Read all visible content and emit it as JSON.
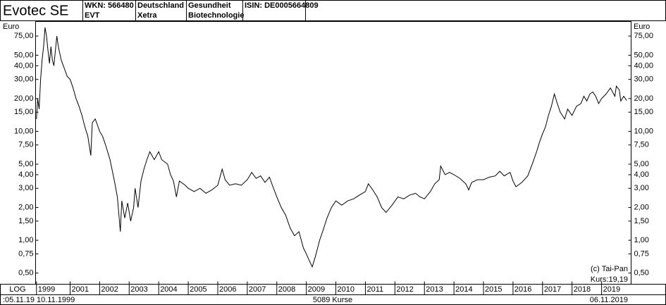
{
  "header": {
    "title": "Evotec SE",
    "cells": [
      [
        "WKN: 566480",
        "EVT"
      ],
      [
        "Deutschland",
        "Xetra"
      ],
      [
        "Gesundheit",
        "Biotechnologie"
      ],
      [
        "ISIN: DE0005664809"
      ]
    ]
  },
  "chart_data": {
    "type": "line",
    "log_scale": true,
    "y_label": "Euro",
    "scale_label": "LOG",
    "color": "#000000",
    "xlim": [
      1999.83,
      2020.0
    ],
    "ylim": [
      0.395,
      102
    ],
    "xticks": [
      {
        "value": 1999.86,
        "label": "1999"
      },
      2001,
      2002,
      2003,
      2004,
      2005,
      2006,
      2007,
      2008,
      2009,
      2010,
      2011,
      2012,
      2013,
      2014,
      2015,
      2016,
      2017,
      2018,
      2019
    ],
    "yticks": [
      {
        "value": 75,
        "label": "75,00"
      },
      {
        "value": 50,
        "label": "50,00"
      },
      {
        "value": 40,
        "label": "40,00"
      },
      {
        "value": 30,
        "label": "30,00"
      },
      {
        "value": 20,
        "label": "20,00"
      },
      {
        "value": 15,
        "label": "15,00"
      },
      {
        "value": 10,
        "label": "10,00"
      },
      {
        "value": 7.5,
        "label": "7,50"
      },
      {
        "value": 5,
        "label": "5,00"
      },
      {
        "value": 4,
        "label": "4,00"
      },
      {
        "value": 3,
        "label": "3,00"
      },
      {
        "value": 2,
        "label": "2,00"
      },
      {
        "value": 1.5,
        "label": "1,50"
      },
      {
        "value": 1,
        "label": "1,00"
      },
      {
        "value": 0.75,
        "label": "0,75"
      },
      {
        "value": 0.5,
        "label": "0,50"
      }
    ],
    "x": [
      1999.86,
      1999.9,
      1999.95,
      2000.0,
      2000.05,
      2000.1,
      2000.15,
      2000.2,
      2000.25,
      2000.3,
      2000.35,
      2000.4,
      2000.45,
      2000.5,
      2000.55,
      2000.6,
      2000.7,
      2000.8,
      2000.9,
      2001.0,
      2001.1,
      2001.2,
      2001.3,
      2001.4,
      2001.5,
      2001.6,
      2001.7,
      2001.75,
      2001.85,
      2002.0,
      2002.1,
      2002.2,
      2002.35,
      2002.5,
      2002.6,
      2002.7,
      2002.75,
      2002.85,
      2002.95,
      2003.05,
      2003.15,
      2003.2,
      2003.3,
      2003.4,
      2003.5,
      2003.6,
      2003.7,
      2003.85,
      2004.0,
      2004.1,
      2004.3,
      2004.4,
      2004.5,
      2004.6,
      2004.7,
      2004.9,
      2005.0,
      2005.2,
      2005.4,
      2005.6,
      2005.8,
      2006.0,
      2006.15,
      2006.25,
      2006.4,
      2006.6,
      2006.8,
      2007.0,
      2007.15,
      2007.3,
      2007.45,
      2007.6,
      2007.75,
      2007.85,
      2008.0,
      2008.15,
      2008.3,
      2008.45,
      2008.6,
      2008.75,
      2008.9,
      2009.0,
      2009.1,
      2009.2,
      2009.3,
      2009.45,
      2009.55,
      2009.7,
      2009.85,
      2010.0,
      2010.2,
      2010.4,
      2010.6,
      2010.8,
      2011.0,
      2011.1,
      2011.25,
      2011.4,
      2011.55,
      2011.7,
      2011.9,
      2012.1,
      2012.3,
      2012.5,
      2012.7,
      2012.85,
      2013.0,
      2013.2,
      2013.35,
      2013.5,
      2013.55,
      2013.7,
      2013.85,
      2014.0,
      2014.2,
      2014.4,
      2014.5,
      2014.6,
      2014.8,
      2015.0,
      2015.2,
      2015.4,
      2015.55,
      2015.7,
      2015.9,
      2016.0,
      2016.1,
      2016.3,
      2016.5,
      2016.65,
      2016.8,
      2016.9,
      2017.0,
      2017.1,
      2017.2,
      2017.3,
      2017.4,
      2017.5,
      2017.6,
      2017.75,
      2017.85,
      2018.0,
      2018.15,
      2018.3,
      2018.4,
      2018.5,
      2018.6,
      2018.7,
      2018.8,
      2018.9,
      2019.0,
      2019.15,
      2019.3,
      2019.45,
      2019.5,
      2019.6,
      2019.65,
      2019.75,
      2019.85
    ],
    "values": [
      13,
      20,
      16,
      30,
      45,
      60,
      90,
      75,
      55,
      42,
      60,
      45,
      40,
      55,
      75,
      60,
      45,
      38,
      32,
      30,
      25,
      20,
      17,
      14,
      11,
      9,
      6,
      12,
      13,
      10,
      9,
      7.5,
      5.5,
      3.5,
      2.5,
      1.2,
      2.3,
      1.6,
      2.2,
      1.5,
      2.0,
      3.0,
      2.0,
      3.5,
      4.5,
      5.5,
      6.5,
      5.5,
      6.5,
      5.5,
      5.0,
      4.0,
      3.5,
      2.5,
      3.5,
      3.2,
      3.0,
      2.8,
      3.0,
      2.7,
      2.9,
      3.2,
      4.5,
      3.6,
      3.2,
      3.3,
      3.2,
      3.6,
      4.2,
      3.7,
      3.9,
      3.4,
      3.8,
      3.2,
      2.5,
      2.0,
      1.7,
      1.3,
      1.1,
      1.2,
      0.85,
      0.75,
      0.65,
      0.57,
      0.7,
      1.0,
      1.2,
      1.6,
      2.0,
      2.3,
      2.1,
      2.3,
      2.4,
      2.6,
      2.8,
      3.3,
      2.9,
      2.5,
      2.0,
      1.8,
      2.1,
      2.5,
      2.4,
      2.6,
      2.7,
      2.5,
      2.4,
      2.8,
      3.3,
      3.6,
      4.8,
      4.0,
      4.2,
      4.0,
      3.7,
      3.3,
      2.9,
      3.4,
      3.6,
      3.6,
      3.8,
      3.9,
      4.3,
      3.9,
      4.2,
      3.5,
      3.1,
      3.4,
      3.9,
      5.0,
      6.5,
      8.0,
      9.5,
      11,
      14,
      17,
      22,
      18,
      15,
      13,
      16,
      14,
      17,
      18,
      21,
      19,
      22,
      23,
      21,
      18,
      20,
      22,
      25,
      21,
      26,
      24,
      19,
      21,
      19.19
    ],
    "annotations": [
      "(c) Tai-Pan",
      "Kurs:19,19"
    ]
  },
  "footer": {
    "time": ":05.11.19",
    "date_from": "10.11.1999",
    "count": "5089 Kurse",
    "date_to": "06.11.2019"
  }
}
